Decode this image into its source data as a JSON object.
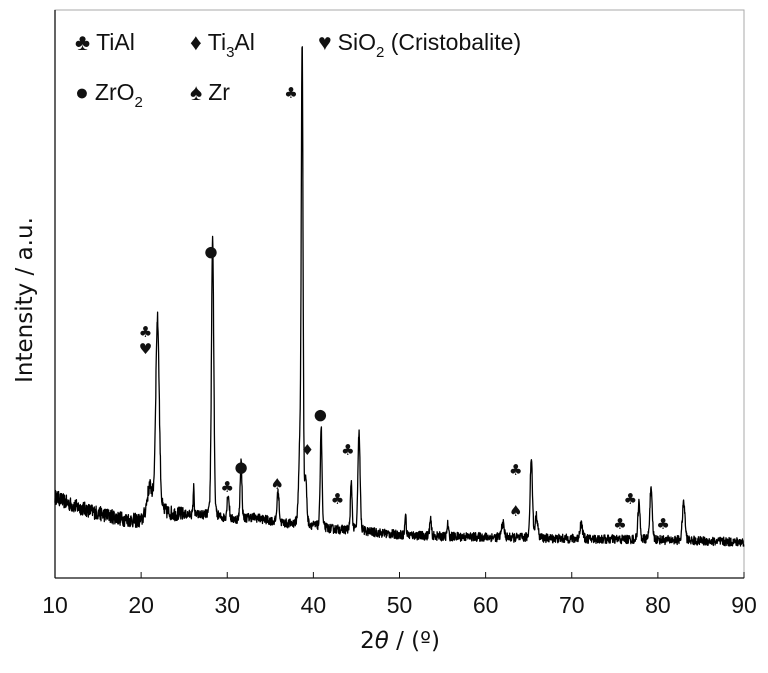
{
  "chart_data": {
    "type": "line",
    "title": "",
    "xlabel_prefix": "2",
    "xlabel_theta": "θ",
    "xlabel_suffix": " / (º)",
    "ylabel": "Intensity / a.u.",
    "xlim": [
      10,
      90
    ],
    "ylim": [
      0,
      100
    ],
    "xticks": [
      10,
      20,
      30,
      40,
      50,
      60,
      70,
      80,
      90
    ],
    "grid": false,
    "legend_placement": "top-left",
    "legend": [
      {
        "symbol": "♣",
        "label": "TiAl"
      },
      {
        "symbol": "♦",
        "label": "Ti",
        "sub": "3",
        "label_after": "Al"
      },
      {
        "symbol": "♥",
        "label": "SiO",
        "sub": "2",
        "label_after": " (Cristobalite)"
      },
      {
        "symbol": "●",
        "label": "ZrO",
        "sub": "2",
        "label_after": ""
      },
      {
        "symbol": "♠",
        "label": "Zr"
      }
    ],
    "background": [
      [
        10,
        14.3
      ],
      [
        12,
        12.8
      ],
      [
        15,
        11.4
      ],
      [
        18,
        10.3
      ],
      [
        20,
        9.9
      ],
      [
        21,
        11.5
      ],
      [
        22,
        11.5
      ],
      [
        24,
        11.2
      ],
      [
        27,
        11.0
      ],
      [
        29,
        10.5
      ],
      [
        31,
        10.2
      ],
      [
        33,
        10.7
      ],
      [
        36,
        9.7
      ],
      [
        38,
        9.2
      ],
      [
        40,
        9.0
      ],
      [
        42,
        8.6
      ],
      [
        45,
        8.3
      ],
      [
        50,
        7.6
      ],
      [
        55,
        7.3
      ],
      [
        60,
        7.2
      ],
      [
        65,
        7.0
      ],
      [
        70,
        6.9
      ],
      [
        75,
        6.8
      ],
      [
        80,
        6.7
      ],
      [
        85,
        6.5
      ],
      [
        90,
        6.3
      ]
    ],
    "peaks": [
      {
        "x": 21.0,
        "height": 4.0,
        "width": 0.3
      },
      {
        "x": 21.9,
        "height": 31.5,
        "width": 0.2
      },
      {
        "x": 26.1,
        "height": 4.5,
        "width": 0.06
      },
      {
        "x": 28.3,
        "height": 45.5,
        "width": 0.13
      },
      {
        "x": 30.1,
        "height": 4.0,
        "width": 0.12
      },
      {
        "x": 31.6,
        "height": 9.5,
        "width": 0.1
      },
      {
        "x": 35.9,
        "height": 5.0,
        "width": 0.12
      },
      {
        "x": 38.45,
        "height": 12.0,
        "width": 0.15
      },
      {
        "x": 38.7,
        "height": 75.0,
        "width": 0.1
      },
      {
        "x": 39.1,
        "height": 7.0,
        "width": 0.12
      },
      {
        "x": 40.9,
        "height": 16.5,
        "width": 0.1
      },
      {
        "x": 44.4,
        "height": 7.5,
        "width": 0.1
      },
      {
        "x": 45.3,
        "height": 16.0,
        "width": 0.12
      },
      {
        "x": 50.7,
        "height": 3.5,
        "width": 0.07
      },
      {
        "x": 53.6,
        "height": 2.5,
        "width": 0.1
      },
      {
        "x": 55.6,
        "height": 2.0,
        "width": 0.08
      },
      {
        "x": 62.0,
        "height": 2.3,
        "width": 0.15
      },
      {
        "x": 65.3,
        "height": 13.0,
        "width": 0.13
      },
      {
        "x": 65.9,
        "height": 3.5,
        "width": 0.15
      },
      {
        "x": 71.1,
        "height": 2.5,
        "width": 0.15
      },
      {
        "x": 77.8,
        "height": 6.0,
        "width": 0.12
      },
      {
        "x": 79.2,
        "height": 8.0,
        "width": 0.14
      },
      {
        "x": 83.0,
        "height": 6.2,
        "width": 0.15
      }
    ],
    "noise_amplitude": 1.6,
    "annotations": [
      {
        "symbol": "♣",
        "x": 20.5,
        "y": 43.5,
        "phase": "TiAl"
      },
      {
        "symbol": "♥",
        "x": 20.5,
        "y": 40.5,
        "phase": "SiO2"
      },
      {
        "symbol": "●",
        "x": 28.1,
        "y": 57.7,
        "phase": "ZrO2"
      },
      {
        "symbol": "♣",
        "x": 37.4,
        "y": 85.6,
        "phase": "TiAl"
      },
      {
        "symbol": "♣",
        "x": 30.0,
        "y": 16.2,
        "phase": "TiAl"
      },
      {
        "symbol": "●",
        "x": 31.6,
        "y": 19.7,
        "phase": "ZrO2"
      },
      {
        "symbol": "♠",
        "x": 35.8,
        "y": 16.7,
        "phase": "Zr"
      },
      {
        "symbol": "♦",
        "x": 39.3,
        "y": 22.7,
        "phase": "Ti3Al"
      },
      {
        "symbol": "●",
        "x": 40.8,
        "y": 29.0,
        "phase": "ZrO2"
      },
      {
        "symbol": "♣",
        "x": 44.0,
        "y": 22.7,
        "phase": "TiAl"
      },
      {
        "symbol": "♣",
        "x": 42.8,
        "y": 14.1,
        "phase": "TiAl"
      },
      {
        "symbol": "♣",
        "x": 63.5,
        "y": 19.2,
        "phase": "TiAl"
      },
      {
        "symbol": "♠",
        "x": 63.5,
        "y": 12.0,
        "phase": "Zr"
      },
      {
        "symbol": "♣",
        "x": 76.8,
        "y": 14.1,
        "phase": "TiAl"
      },
      {
        "symbol": "♣",
        "x": 75.6,
        "y": 9.7,
        "phase": "TiAl"
      },
      {
        "symbol": "♣",
        "x": 80.6,
        "y": 9.7,
        "phase": "TiAl"
      }
    ]
  }
}
